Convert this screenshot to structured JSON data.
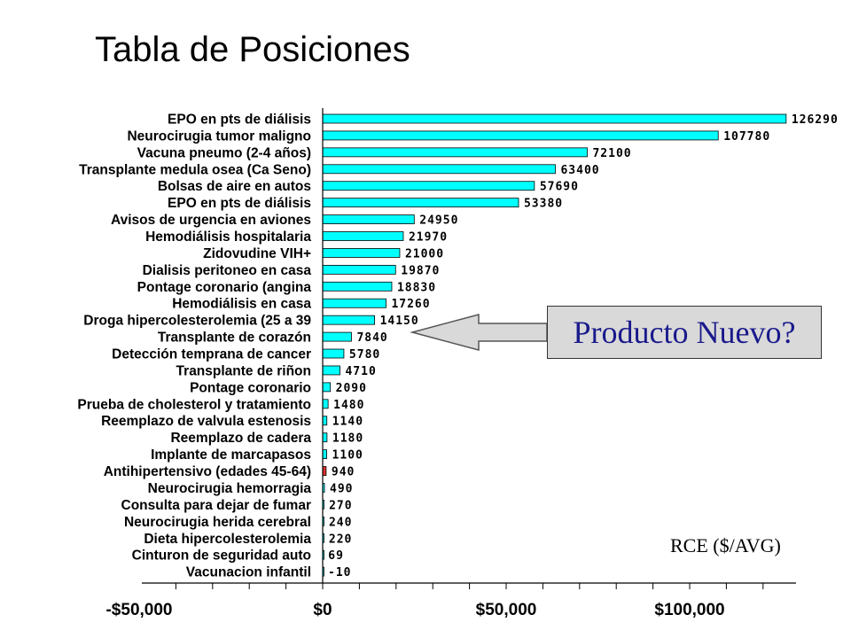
{
  "slide": {
    "title": "Tabla de Posiciones"
  },
  "callout": {
    "text": "Producto Nuevo?"
  },
  "colors": {
    "bar": "#00ffff",
    "highlight_bar": "#e03030",
    "bar_stroke": "#000000",
    "callout_text": "#1a1a8c",
    "callout_bg": "#d9d9d9"
  },
  "chart_data": {
    "type": "bar",
    "orientation": "horizontal",
    "title": "",
    "xlabel": "RCE ($/AVG)",
    "ylabel": "",
    "xlim": [
      -50000,
      130000
    ],
    "xticks": [
      "-$50,000",
      "$0",
      "$50,000",
      "$100,000"
    ],
    "xtick_values": [
      -50000,
      0,
      50000,
      100000
    ],
    "grid": false,
    "categories": [
      "EPO en pts de diálisis",
      "Neurocirugia tumor maligno",
      "Vacuna pneumo (2-4 años)",
      "Transplante medula osea (Ca Seno)",
      "Bolsas de aire en autos",
      "EPO en pts de diálisis",
      "Avisos de urgencia en aviones",
      "Hemodiálisis hospitalaria",
      "Zidovudine VIH+",
      "Dialisis peritoneo en casa",
      "Pontage coronario (angina",
      "Hemodiálisis en casa",
      "Droga hipercolesterolemia (25 a 39",
      "Transplante de corazón",
      "Detección temprana de cancer",
      "Transplante de riñon",
      "Pontage coronario",
      "Prueba de cholesterol y tratamiento",
      "Reemplazo de valvula estenosis",
      "Reemplazo de cadera",
      "Implante de marcapasos",
      "Antihipertensivo (edades 45-64)",
      "Neurocirugia hemorragia",
      "Consulta para dejar de fumar",
      "Neurocirugia herida cerebral",
      "Dieta hipercolesterolemia",
      "Cinturon de seguridad auto",
      "Vacunacion infantil"
    ],
    "values": [
      126290,
      107780,
      72100,
      63400,
      57690,
      53380,
      24950,
      21970,
      21000,
      19870,
      18830,
      17260,
      14150,
      7840,
      5780,
      4710,
      2090,
      1480,
      1140,
      1180,
      1100,
      940,
      490,
      270,
      240,
      220,
      69,
      -10
    ],
    "value_labels": [
      "126290",
      "107780",
      "72100",
      "63400",
      "57690",
      "53380",
      "24950",
      "21970",
      "21000",
      "19870",
      "18830",
      "17260",
      "14150",
      "7840",
      "5780",
      "4710",
      "2090",
      "1480",
      "1140",
      "1180",
      "1100",
      "940",
      "490",
      "270",
      "240",
      "220",
      "69",
      "-10"
    ],
    "highlight_index": 21
  }
}
